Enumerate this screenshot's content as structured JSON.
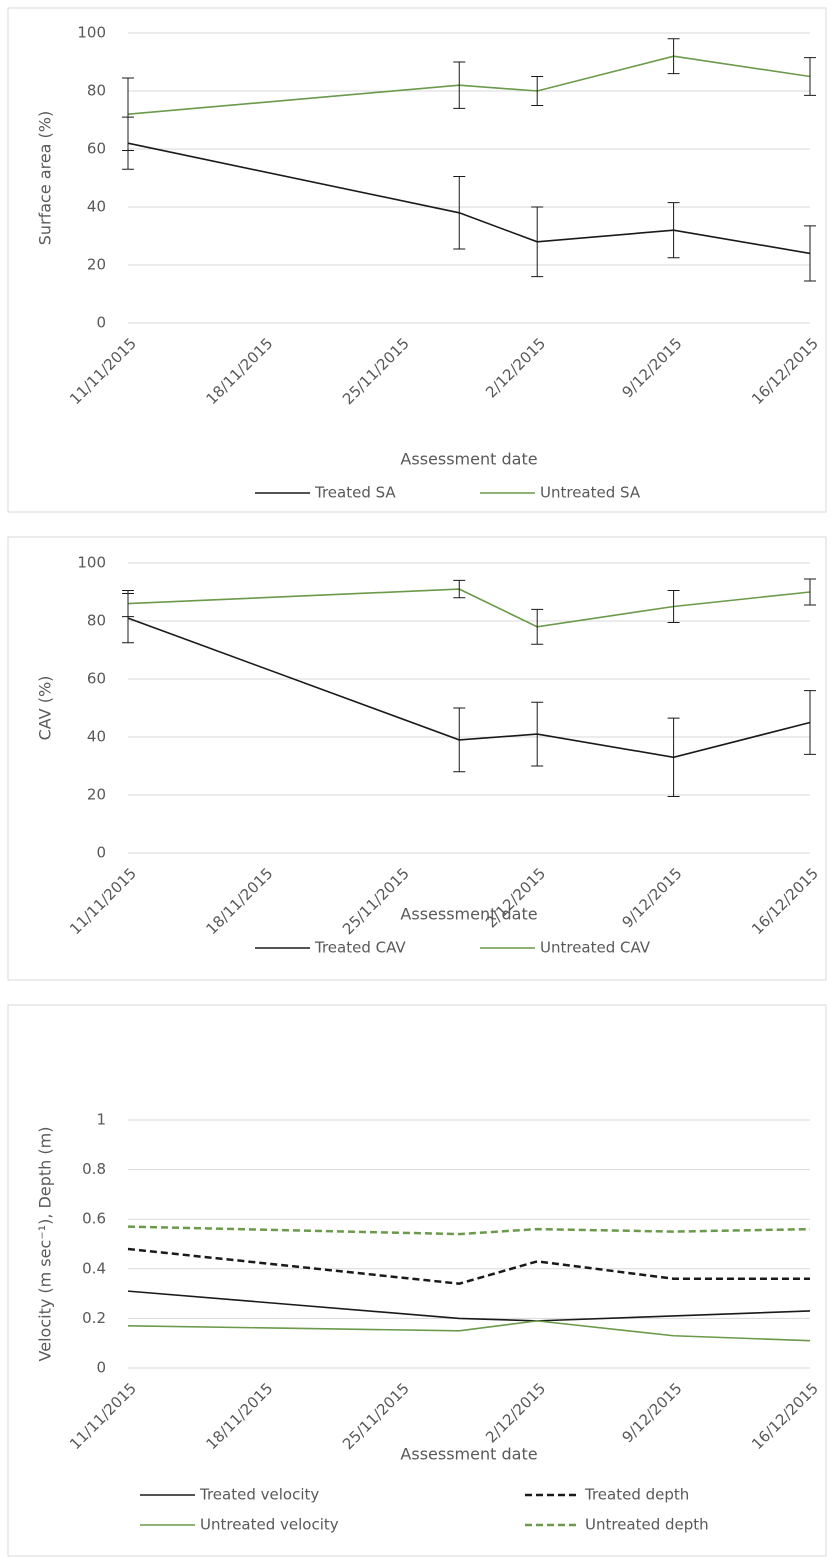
{
  "chart_data": [
    {
      "type": "line",
      "x_label": "Assessment date",
      "y_label": "Surface area (%)",
      "x": [
        "2015-11-11",
        "2015-11-28",
        "2015-12-02",
        "2015-12-09",
        "2015-12-16"
      ],
      "xlim": [
        "2015-11-11",
        "2015-12-16"
      ],
      "xticks": [
        {
          "value": "2015-11-11",
          "label": "11/11/2015"
        },
        {
          "value": "2015-11-18",
          "label": "18/11/2015"
        },
        {
          "value": "2015-11-25",
          "label": "25/11/2015"
        },
        {
          "value": "2015-12-02",
          "label": "2/12/2015"
        },
        {
          "value": "2015-12-09",
          "label": "9/12/2015"
        },
        {
          "value": "2015-12-16",
          "label": "16/12/2015"
        }
      ],
      "ylim": [
        0,
        100
      ],
      "yticks": [
        0,
        20,
        40,
        60,
        80,
        100
      ],
      "grid": true,
      "legend": "bottom",
      "series": [
        {
          "name": "Treated SA",
          "color": "#1a1a1a",
          "line_style": "solid",
          "values": [
            62,
            38,
            28,
            32,
            24
          ],
          "errors": [
            9,
            12.5,
            12,
            9.5,
            9.5
          ]
        },
        {
          "name": "Untreated SA",
          "color": "#6a9a4a",
          "line_style": "solid",
          "values": [
            72,
            82,
            80,
            92,
            85
          ],
          "errors": [
            12.5,
            8,
            5,
            6,
            6.5
          ]
        }
      ]
    },
    {
      "type": "line",
      "x_label": "Assessment date",
      "y_label": "CAV (%)",
      "x": [
        "2015-11-11",
        "2015-11-28",
        "2015-12-02",
        "2015-12-09",
        "2015-12-16"
      ],
      "xlim": [
        "2015-11-11",
        "2015-12-16"
      ],
      "xticks": [
        {
          "value": "2015-11-11",
          "label": "11/11/2015"
        },
        {
          "value": "2015-11-18",
          "label": "18/11/2015"
        },
        {
          "value": "2015-11-25",
          "label": "25/11/2015"
        },
        {
          "value": "2015-12-02",
          "label": "2/12/2015"
        },
        {
          "value": "2015-12-09",
          "label": "9/12/2015"
        },
        {
          "value": "2015-12-16",
          "label": "16/12/2015"
        }
      ],
      "ylim": [
        0,
        100
      ],
      "yticks": [
        0,
        20,
        40,
        60,
        80,
        100
      ],
      "grid": true,
      "legend": "bottom",
      "series": [
        {
          "name": "Treated CAV",
          "color": "#1a1a1a",
          "line_style": "solid",
          "values": [
            81,
            39,
            41,
            33,
            45
          ],
          "errors": [
            8.5,
            11,
            11,
            13.5,
            11
          ]
        },
        {
          "name": "Untreated CAV",
          "color": "#6a9a4a",
          "line_style": "solid",
          "values": [
            86,
            91,
            78,
            85,
            90
          ],
          "errors": [
            4.5,
            3,
            6,
            5.5,
            4.5
          ]
        }
      ]
    },
    {
      "type": "line",
      "x_label": "Assessment date",
      "y_label": "Velocity (m sec⁻¹), Depth (m)",
      "x": [
        "2015-11-11",
        "2015-11-28",
        "2015-12-02",
        "2015-12-09",
        "2015-12-16"
      ],
      "xlim": [
        "2015-11-11",
        "2015-12-16"
      ],
      "xticks": [
        {
          "value": "2015-11-11",
          "label": "11/11/2015"
        },
        {
          "value": "2015-11-18",
          "label": "18/11/2015"
        },
        {
          "value": "2015-11-25",
          "label": "25/11/2015"
        },
        {
          "value": "2015-12-02",
          "label": "2/12/2015"
        },
        {
          "value": "2015-12-09",
          "label": "9/12/2015"
        },
        {
          "value": "2015-12-16",
          "label": "16/12/2015"
        }
      ],
      "ylim": [
        0,
        1
      ],
      "yticks": [
        0,
        0.2,
        0.4,
        0.6,
        0.8,
        1
      ],
      "grid": true,
      "legend": "bottom",
      "series": [
        {
          "name": "Treated velocity",
          "color": "#1a1a1a",
          "line_style": "solid",
          "values": [
            0.31,
            0.2,
            0.19,
            0.21,
            0.23
          ]
        },
        {
          "name": "Treated depth",
          "color": "#1a1a1a",
          "line_style": "dashed",
          "values": [
            0.48,
            0.34,
            0.43,
            0.36,
            0.36
          ]
        },
        {
          "name": "Untreated velocity",
          "color": "#6a9a4a",
          "line_style": "solid",
          "values": [
            0.17,
            0.15,
            0.19,
            0.13,
            0.11
          ]
        },
        {
          "name": "Untreated depth",
          "color": "#6a9a4a",
          "line_style": "dashed",
          "values": [
            0.57,
            0.54,
            0.56,
            0.55,
            0.56
          ]
        }
      ]
    }
  ]
}
